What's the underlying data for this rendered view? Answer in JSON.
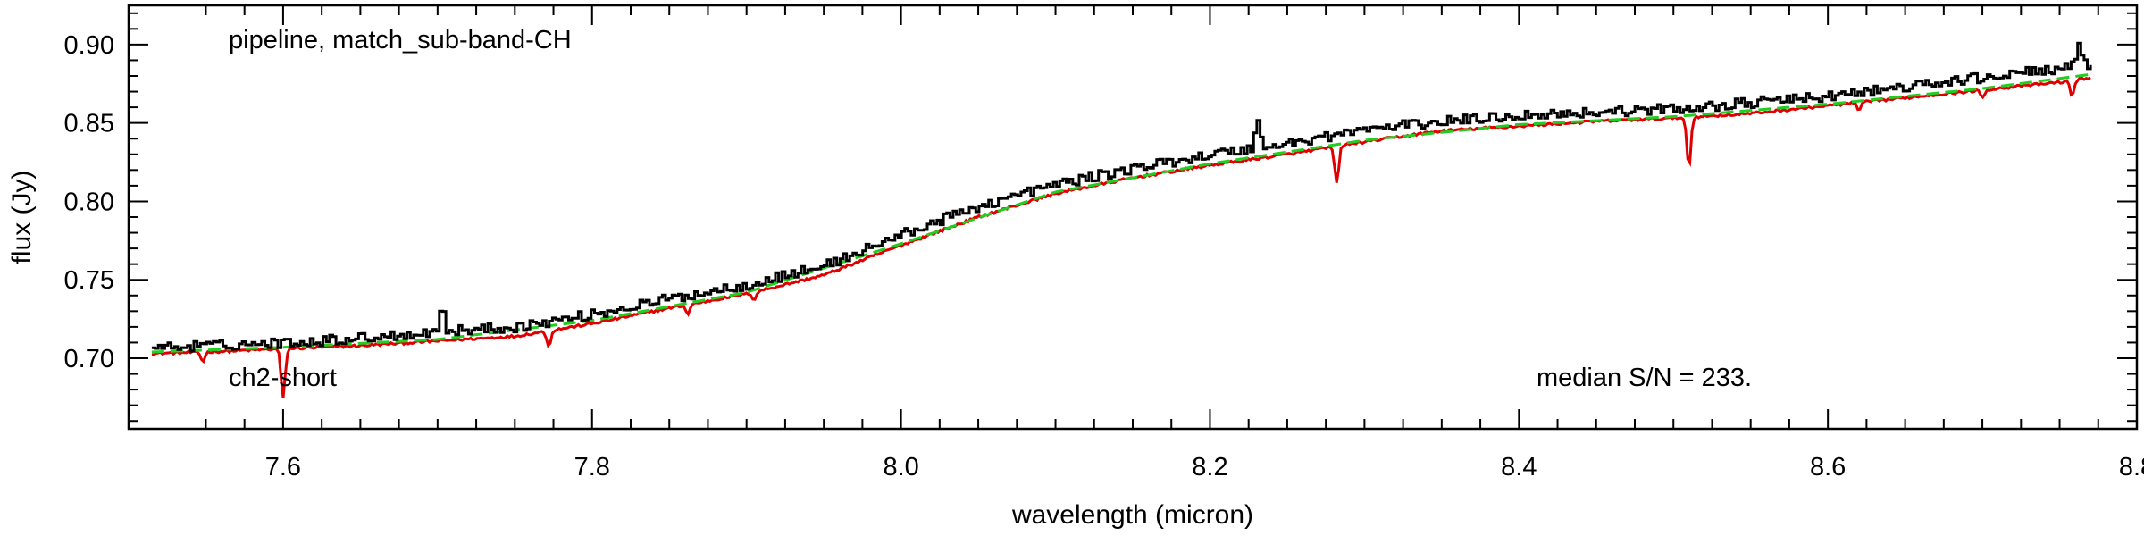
{
  "chart_data": {
    "type": "line",
    "xlabel": "wavelength (micron)",
    "ylabel": "flux (Jy)",
    "xlim": [
      7.5,
      8.8
    ],
    "ylim": [
      0.655,
      0.925
    ],
    "x_ticks": [
      7.6,
      7.8,
      8.0,
      8.2,
      8.4,
      8.6,
      8.8
    ],
    "x_tick_labels": [
      "7.6",
      "7.8",
      "8.0",
      "8.2",
      "8.4",
      "8.6",
      "8.8"
    ],
    "y_ticks": [
      0.7,
      0.75,
      0.8,
      0.85,
      0.9
    ],
    "y_tick_labels": [
      "0.70",
      "0.75",
      "0.80",
      "0.85",
      "0.90"
    ],
    "annotations": {
      "top_left": "pipeline, match_sub-band-CH",
      "bottom_left": "ch2-short",
      "bottom_right": "median S/N = 233."
    },
    "grid": false,
    "series": [
      {
        "color": "#000000",
        "style": "steps",
        "x": [
          7.515,
          7.55,
          7.6,
          7.65,
          7.7,
          7.75,
          7.8,
          7.85,
          7.9,
          7.95,
          8.0,
          8.05,
          8.1,
          8.15,
          8.2,
          8.25,
          8.3,
          8.35,
          8.4,
          8.45,
          8.5,
          8.55,
          8.6,
          8.65,
          8.7,
          8.75,
          8.77
        ],
        "values": [
          0.706,
          0.707,
          0.709,
          0.712,
          0.716,
          0.719,
          0.727,
          0.737,
          0.746,
          0.758,
          0.778,
          0.796,
          0.81,
          0.82,
          0.829,
          0.836,
          0.845,
          0.85,
          0.854,
          0.856,
          0.858,
          0.862,
          0.866,
          0.872,
          0.878,
          0.884,
          0.886
        ],
        "features": [
          {
            "x": 7.702,
            "depth": 0.015
          },
          {
            "x": 8.23,
            "depth": 0.017
          },
          {
            "x": 8.762,
            "depth": 0.012
          }
        ]
      },
      {
        "color": "#e00000",
        "style": "line",
        "x": [
          7.515,
          7.55,
          7.6,
          7.65,
          7.7,
          7.75,
          7.8,
          7.85,
          7.9,
          7.95,
          8.0,
          8.05,
          8.1,
          8.15,
          8.2,
          8.25,
          8.3,
          8.35,
          8.4,
          8.45,
          8.5,
          8.55,
          8.6,
          8.65,
          8.7,
          8.75,
          8.77
        ],
        "values": [
          0.703,
          0.704,
          0.706,
          0.708,
          0.711,
          0.714,
          0.722,
          0.732,
          0.741,
          0.753,
          0.772,
          0.79,
          0.805,
          0.815,
          0.823,
          0.83,
          0.838,
          0.845,
          0.848,
          0.851,
          0.853,
          0.856,
          0.861,
          0.866,
          0.871,
          0.876,
          0.879
        ],
        "absorption_lines": [
          {
            "x": 7.548,
            "depth": 0.006
          },
          {
            "x": 7.6,
            "depth": 0.032
          },
          {
            "x": 7.772,
            "depth": 0.01
          },
          {
            "x": 7.862,
            "depth": 0.006
          },
          {
            "x": 7.905,
            "depth": 0.005
          },
          {
            "x": 8.282,
            "depth": 0.024
          },
          {
            "x": 8.51,
            "depth": 0.032
          },
          {
            "x": 8.62,
            "depth": 0.005
          },
          {
            "x": 8.7,
            "depth": 0.005
          },
          {
            "x": 8.758,
            "depth": 0.01
          }
        ]
      },
      {
        "color": "#22cc22",
        "style": "dashed",
        "x": [
          7.515,
          7.6,
          7.7,
          7.8,
          7.9,
          8.0,
          8.1,
          8.2,
          8.3,
          8.4,
          8.5,
          8.6,
          8.7,
          8.77
        ],
        "values": [
          0.704,
          0.707,
          0.712,
          0.724,
          0.742,
          0.773,
          0.806,
          0.824,
          0.839,
          0.849,
          0.854,
          0.862,
          0.872,
          0.881
        ]
      }
    ]
  }
}
